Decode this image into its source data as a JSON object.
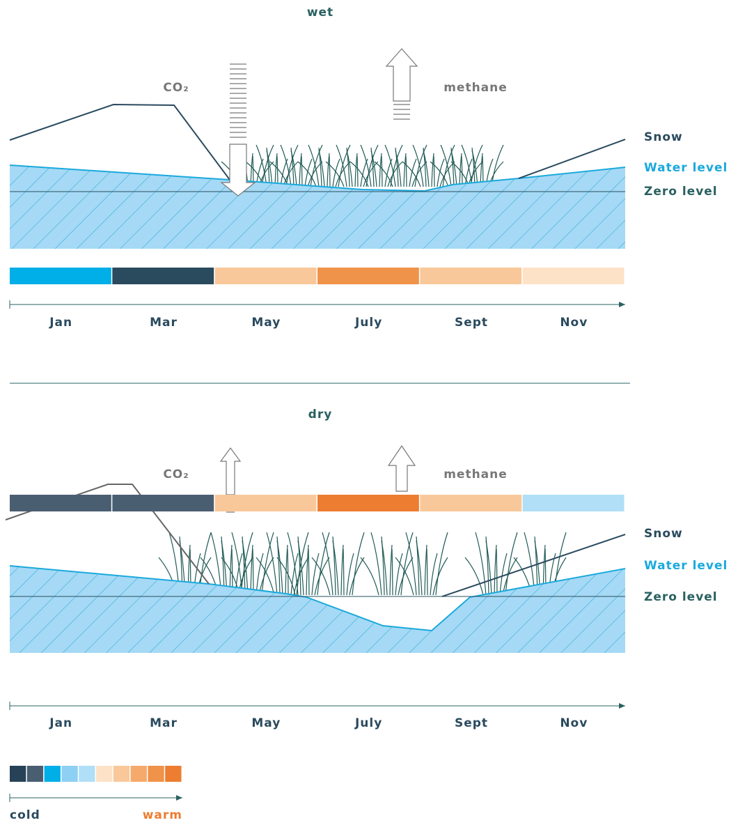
{
  "panels": [
    {
      "title": "wet",
      "co2": "CO₂",
      "methane": "methane",
      "labels": {
        "snow": "Snow",
        "water_level": "Water level",
        "zero_level": "Zero level"
      },
      "months": [
        "Jan",
        "Mar",
        "May",
        "July",
        "Sept",
        "Nov"
      ],
      "month_colors": [
        "#00aee8",
        "#2a4a5e",
        "#f9c89a",
        "#f0934a",
        "#f9c89a",
        "#fde2c8"
      ]
    },
    {
      "title": "dry",
      "co2": "CO₂",
      "methane": "methane",
      "labels": {
        "snow": "Snow",
        "water_level": "Water level",
        "zero_level": "Zero level"
      },
      "months": [
        "Jan",
        "Mar",
        "May",
        "July",
        "Sept",
        "Nov"
      ],
      "month_colors": [
        "#4a5e72",
        "#4a5e72",
        "#f9c89a",
        "#ed7d31",
        "#f9c89a",
        "#b0dff7"
      ]
    }
  ],
  "legend": {
    "colors": [
      "#274257",
      "#4a5e72",
      "#00aee8",
      "#8dd0f3",
      "#b0dff7",
      "#fde2c8",
      "#f9c89a",
      "#f5aa6c",
      "#f0934a",
      "#ed7d31"
    ],
    "cold": "cold",
    "warm": "warm"
  }
}
